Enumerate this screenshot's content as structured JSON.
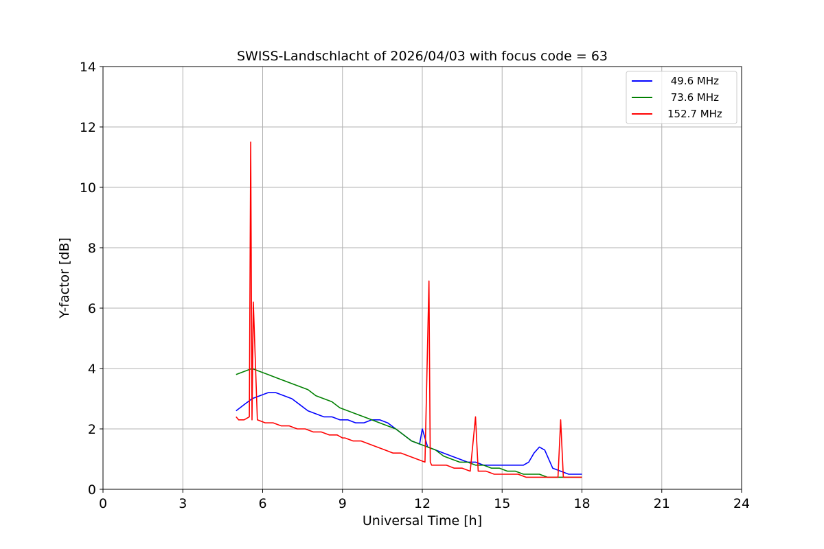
{
  "chart_data": {
    "type": "line",
    "title": "SWISS-Landschlacht of 2026/04/03 with focus code = 63",
    "xlabel": "Universal Time [h]",
    "ylabel": "Y-factor [dB]",
    "xlim": [
      0,
      24
    ],
    "ylim": [
      0,
      14
    ],
    "xticks": [
      0,
      3,
      6,
      9,
      12,
      15,
      18,
      21,
      24
    ],
    "yticks": [
      0,
      2,
      4,
      6,
      8,
      10,
      12,
      14
    ],
    "grid": true,
    "legend_position": "top-right",
    "series": [
      {
        "name": " 49.6 MHz",
        "color": "#0000ff",
        "x": [
          5.0,
          5.3,
          5.6,
          5.9,
          6.2,
          6.5,
          6.8,
          7.1,
          7.4,
          7.7,
          8.0,
          8.3,
          8.6,
          8.9,
          9.2,
          9.5,
          9.8,
          10.1,
          10.4,
          10.7,
          11.0,
          11.3,
          11.6,
          11.9,
          12.0,
          12.2,
          12.5,
          12.8,
          13.1,
          13.4,
          13.7,
          14.0,
          14.3,
          14.6,
          14.9,
          15.2,
          15.5,
          15.8,
          16.0,
          16.2,
          16.4,
          16.6,
          16.9,
          17.2,
          17.5,
          17.8,
          18.0
        ],
        "y": [
          2.6,
          2.8,
          3.0,
          3.1,
          3.2,
          3.2,
          3.1,
          3.0,
          2.8,
          2.6,
          2.5,
          2.4,
          2.4,
          2.3,
          2.3,
          2.2,
          2.2,
          2.3,
          2.3,
          2.2,
          2.0,
          1.8,
          1.6,
          1.5,
          2.0,
          1.4,
          1.3,
          1.2,
          1.1,
          1.0,
          0.9,
          0.9,
          0.8,
          0.8,
          0.8,
          0.8,
          0.8,
          0.8,
          0.9,
          1.2,
          1.4,
          1.3,
          0.7,
          0.6,
          0.5,
          0.5,
          0.5
        ]
      },
      {
        "name": " 73.6 MHz",
        "color": "#008000",
        "x": [
          5.0,
          5.3,
          5.6,
          5.9,
          6.2,
          6.5,
          6.8,
          7.1,
          7.4,
          7.7,
          8.0,
          8.3,
          8.6,
          8.9,
          9.2,
          9.5,
          9.8,
          10.1,
          10.4,
          10.7,
          11.0,
          11.3,
          11.6,
          11.9,
          12.2,
          12.5,
          12.8,
          13.1,
          13.4,
          13.7,
          14.0,
          14.3,
          14.6,
          14.9,
          15.2,
          15.5,
          15.8,
          16.1,
          16.4,
          16.7,
          17.0,
          17.3,
          17.6,
          18.0
        ],
        "y": [
          3.8,
          3.9,
          4.0,
          3.9,
          3.8,
          3.7,
          3.6,
          3.5,
          3.4,
          3.3,
          3.1,
          3.0,
          2.9,
          2.7,
          2.6,
          2.5,
          2.4,
          2.3,
          2.2,
          2.1,
          2.0,
          1.8,
          1.6,
          1.5,
          1.4,
          1.3,
          1.1,
          1.0,
          0.9,
          0.9,
          0.8,
          0.8,
          0.7,
          0.7,
          0.6,
          0.6,
          0.5,
          0.5,
          0.5,
          0.4,
          0.4,
          0.4,
          0.4,
          0.4
        ]
      },
      {
        "name": "152.7 MHz",
        "color": "#ff0000",
        "x": [
          5.0,
          5.1,
          5.3,
          5.5,
          5.55,
          5.6,
          5.65,
          5.8,
          6.1,
          6.4,
          6.7,
          7.0,
          7.3,
          7.6,
          7.9,
          8.2,
          8.5,
          8.8,
          9.0,
          9.1,
          9.4,
          9.7,
          10.0,
          10.3,
          10.6,
          10.9,
          11.2,
          11.5,
          11.8,
          12.1,
          12.25,
          12.3,
          12.35,
          12.6,
          12.9,
          13.2,
          13.5,
          13.8,
          14.0,
          14.1,
          14.4,
          14.7,
          15.0,
          15.3,
          15.6,
          15.9,
          16.2,
          16.5,
          16.8,
          17.1,
          17.2,
          17.3,
          17.6,
          18.0
        ],
        "y": [
          2.4,
          2.3,
          2.3,
          2.4,
          11.5,
          2.3,
          6.2,
          2.3,
          2.2,
          2.2,
          2.1,
          2.1,
          2.0,
          2.0,
          1.9,
          1.9,
          1.8,
          1.8,
          1.7,
          1.7,
          1.6,
          1.6,
          1.5,
          1.4,
          1.3,
          1.2,
          1.2,
          1.1,
          1.0,
          0.9,
          6.9,
          0.9,
          0.8,
          0.8,
          0.8,
          0.7,
          0.7,
          0.6,
          2.4,
          0.6,
          0.6,
          0.5,
          0.5,
          0.5,
          0.5,
          0.4,
          0.4,
          0.4,
          0.4,
          0.4,
          2.3,
          0.4,
          0.4,
          0.4
        ]
      }
    ]
  }
}
